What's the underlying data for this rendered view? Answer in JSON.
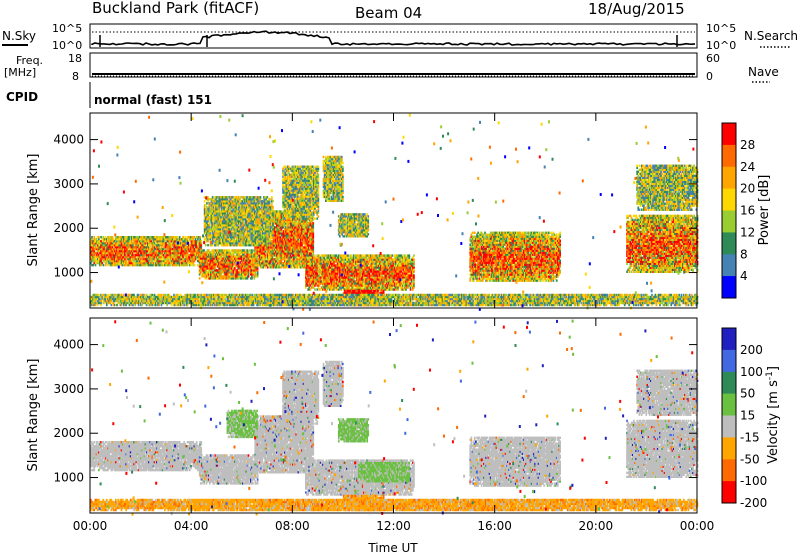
{
  "header": {
    "station": "Buckland Park (fitACF)",
    "beam": "Beam 04",
    "date": "18/Aug/2015"
  },
  "noise_panel": {
    "left_label": "N.Sky",
    "right_label": "N.Search",
    "ticks": [
      "10^5",
      "10^0"
    ],
    "right_ticks": [
      "10^5",
      "10^0"
    ]
  },
  "freq_panel": {
    "left_label_line1": "Freq.",
    "left_label_line2": "[MHz]",
    "left_ticks": [
      "18",
      "8"
    ],
    "right_label": "Nave",
    "right_ticks": [
      "60",
      "0"
    ]
  },
  "cpid_panel": {
    "label": "CPID",
    "text": "normal (fast) 151"
  },
  "chart_data": [
    {
      "type": "heatmap",
      "panel": "power",
      "ylabel": "Slant Range [km]",
      "yticks": [
        1000,
        2000,
        3000,
        4000
      ],
      "ylim": [
        200,
        4600
      ],
      "xticks": [
        "00:00",
        "04:00",
        "08:00",
        "12:00",
        "16:00",
        "20:00",
        "00:00"
      ],
      "xlim_hours": [
        0,
        24
      ],
      "colorbar_label": "Power [dB]",
      "colorbar_ticks": [
        "28",
        "24",
        "20",
        "16",
        "12",
        "8",
        "4"
      ],
      "colors": [
        "#ff0000",
        "#ff6a00",
        "#ffa500",
        "#ffd700",
        "#9acd32",
        "#2e8b57",
        "#4682b4",
        "#0000ff"
      ],
      "regions": [
        {
          "t0": 0.0,
          "t1": 4.4,
          "r0": 1150,
          "r1": 1800,
          "level": "high"
        },
        {
          "t0": 4.3,
          "t1": 6.6,
          "r0": 850,
          "r1": 1500,
          "level": "high"
        },
        {
          "t0": 6.5,
          "t1": 8.8,
          "r0": 1100,
          "r1": 2400,
          "level": "high"
        },
        {
          "t0": 4.5,
          "t1": 7.2,
          "r0": 1600,
          "r1": 2700,
          "level": "mid"
        },
        {
          "t0": 7.6,
          "t1": 9.0,
          "r0": 2200,
          "r1": 3400,
          "level": "mid"
        },
        {
          "t0": 9.2,
          "t1": 10.0,
          "r0": 2600,
          "r1": 3600,
          "level": "mid"
        },
        {
          "t0": 8.5,
          "t1": 12.8,
          "r0": 600,
          "r1": 1400,
          "level": "high"
        },
        {
          "t0": 10.0,
          "t1": 11.6,
          "r0": 250,
          "r1": 600,
          "level": "max"
        },
        {
          "t0": 9.8,
          "t1": 11.0,
          "r0": 1800,
          "r1": 2300,
          "level": "mid"
        },
        {
          "t0": 15.0,
          "t1": 18.6,
          "r0": 800,
          "r1": 1900,
          "level": "high"
        },
        {
          "t0": 21.2,
          "t1": 24.0,
          "r0": 1000,
          "r1": 2300,
          "level": "high"
        },
        {
          "t0": 21.6,
          "t1": 24.0,
          "r0": 2400,
          "r1": 3400,
          "level": "mid"
        },
        {
          "t0": 0.0,
          "t1": 24.0,
          "r0": 250,
          "r1": 500,
          "level": "low"
        }
      ]
    },
    {
      "type": "heatmap",
      "panel": "velocity",
      "ylabel": "Slant Range [km]",
      "yticks": [
        1000,
        2000,
        3000,
        4000
      ],
      "ylim": [
        200,
        4600
      ],
      "xticks": [
        "00:00",
        "04:00",
        "08:00",
        "12:00",
        "16:00",
        "20:00",
        "00:00"
      ],
      "xlabel": "Time UT",
      "xlim_hours": [
        0,
        24
      ],
      "colorbar_label_main": "Velocity [m s",
      "colorbar_label_sup": "-1",
      "colorbar_label_end": "]",
      "colorbar_ticks": [
        "200",
        "100",
        "50",
        "15",
        "-15",
        "-50",
        "-100",
        "-200"
      ],
      "colors": [
        "#2020c0",
        "#4169e1",
        "#2e8b57",
        "#6ac040",
        "#bebebe",
        "#ffa500",
        "#ff6a00",
        "#ff0000"
      ],
      "regions": [
        {
          "t0": 0.0,
          "t1": 4.4,
          "r0": 1150,
          "r1": 1800,
          "level": "gray"
        },
        {
          "t0": 4.3,
          "t1": 6.6,
          "r0": 850,
          "r1": 1500,
          "level": "gray"
        },
        {
          "t0": 6.5,
          "t1": 8.8,
          "r0": 1100,
          "r1": 2400,
          "level": "gray"
        },
        {
          "t0": 5.4,
          "t1": 6.6,
          "r0": 1900,
          "r1": 2500,
          "level": "green"
        },
        {
          "t0": 7.6,
          "t1": 9.0,
          "r0": 2200,
          "r1": 3400,
          "level": "gray"
        },
        {
          "t0": 9.2,
          "t1": 10.0,
          "r0": 2600,
          "r1": 3600,
          "level": "gray"
        },
        {
          "t0": 9.8,
          "t1": 11.0,
          "r0": 1800,
          "r1": 2300,
          "level": "green"
        },
        {
          "t0": 8.5,
          "t1": 12.8,
          "r0": 600,
          "r1": 1400,
          "level": "gray"
        },
        {
          "t0": 10.6,
          "t1": 12.6,
          "r0": 900,
          "r1": 1350,
          "level": "green"
        },
        {
          "t0": 10.0,
          "t1": 11.6,
          "r0": 250,
          "r1": 600,
          "level": "orange"
        },
        {
          "t0": 15.0,
          "t1": 18.6,
          "r0": 800,
          "r1": 1900,
          "level": "gray"
        },
        {
          "t0": 21.2,
          "t1": 24.0,
          "r0": 1000,
          "r1": 2300,
          "level": "gray"
        },
        {
          "t0": 21.6,
          "t1": 24.0,
          "r0": 2400,
          "r1": 3400,
          "level": "gray"
        },
        {
          "t0": 0.0,
          "t1": 24.0,
          "r0": 250,
          "r1": 500,
          "level": "orange"
        }
      ]
    }
  ]
}
